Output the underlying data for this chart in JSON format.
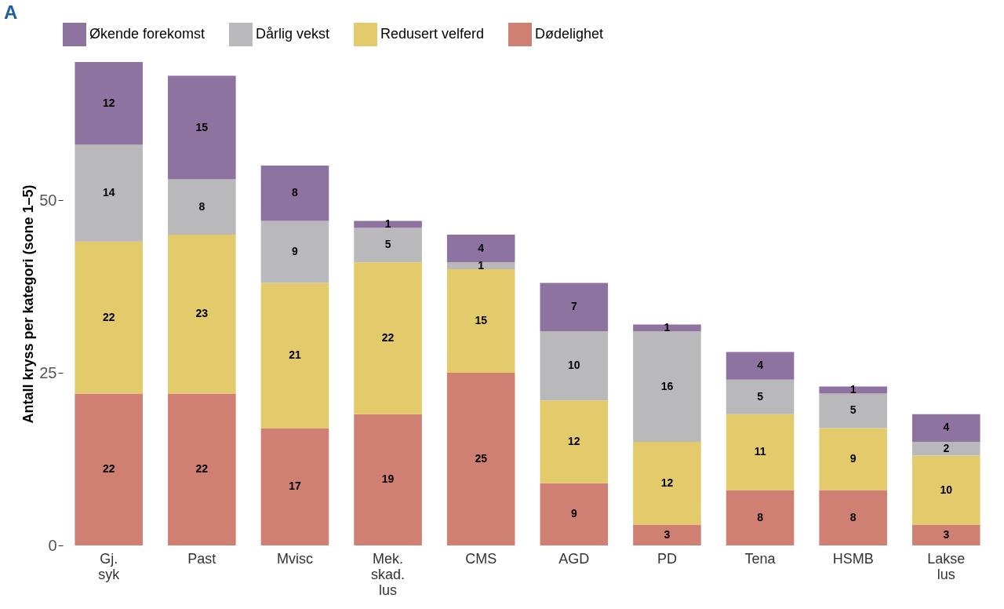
{
  "chart_data": {
    "type": "bar",
    "stacked": true,
    "ylabel": "Antall kryss per kategori (sone 1–5)",
    "annotations": [
      "A"
    ],
    "categories": [
      "Gj. syk",
      "Past",
      "Mvisc",
      "Mek. skad. lus",
      "CMS",
      "AGD",
      "PD",
      "Tena",
      "HSMB",
      "Lakse lus"
    ],
    "series": [
      {
        "name": "Dødelighet",
        "color": "#d08073",
        "values": [
          22,
          22,
          17,
          19,
          25,
          9,
          3,
          8,
          8,
          3
        ]
      },
      {
        "name": "Redusert velferd",
        "color": "#e3ca6b",
        "values": [
          22,
          23,
          21,
          22,
          15,
          12,
          12,
          11,
          9,
          10
        ]
      },
      {
        "name": "Dårlig vekst",
        "color": "#b9b9bb",
        "values": [
          14,
          8,
          9,
          5,
          1,
          10,
          16,
          5,
          5,
          2
        ]
      },
      {
        "name": "Økende forekomst",
        "color": "#8e72a0",
        "values": [
          12,
          15,
          8,
          1,
          4,
          7,
          1,
          4,
          1,
          4
        ]
      }
    ],
    "ylim": [
      0,
      70
    ],
    "yticks": [
      0,
      25,
      50
    ],
    "grid": false,
    "legend": "top",
    "data_labels": true
  }
}
